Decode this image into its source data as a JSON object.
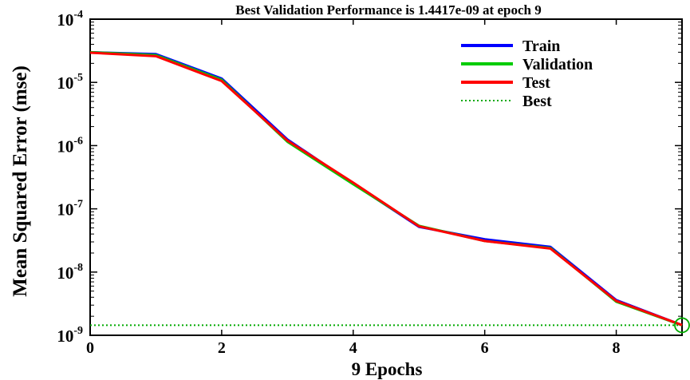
{
  "chart_data": {
    "type": "line",
    "title": "Best Validation Performance is 1.4417e-09 at epoch 9",
    "xlabel": "9 Epochs",
    "ylabel": "Mean Squared Error  (mse)",
    "xlim": [
      0,
      9
    ],
    "ylim": [
      1e-09,
      0.0001
    ],
    "yscale": "log",
    "xticks": [
      0,
      2,
      4,
      6,
      8
    ],
    "yticks": [
      {
        "value": 1e-09,
        "base": "10",
        "exp": "-9"
      },
      {
        "value": 1e-08,
        "base": "10",
        "exp": "-8"
      },
      {
        "value": 1e-07,
        "base": "10",
        "exp": "-7"
      },
      {
        "value": 1e-06,
        "base": "10",
        "exp": "-6"
      },
      {
        "value": 1e-05,
        "base": "10",
        "exp": "-5"
      },
      {
        "value": 0.0001,
        "base": "10",
        "exp": "-4"
      }
    ],
    "grid": false,
    "legend_position": "top-right",
    "x": [
      0,
      1,
      2,
      3,
      4,
      5,
      6,
      7,
      8,
      9
    ],
    "series": [
      {
        "name": "Train",
        "color": "#0000ff",
        "values": [
          3e-05,
          2.8e-05,
          1.15e-05,
          1.25e-06,
          2.5e-07,
          5.2e-08,
          3.3e-08,
          2.5e-08,
          3.6e-09,
          1.45e-09
        ]
      },
      {
        "name": "Validation",
        "color": "#00cc00",
        "values": [
          3e-05,
          2.7e-05,
          1.1e-05,
          1.15e-06,
          2.45e-07,
          5.4e-08,
          3.1e-08,
          2.4e-08,
          3.4e-09,
          1.44e-09
        ]
      },
      {
        "name": "Test",
        "color": "#ff0000",
        "values": [
          2.95e-05,
          2.6e-05,
          1.05e-05,
          1.2e-06,
          2.6e-07,
          5.3e-08,
          3.1e-08,
          2.35e-08,
          3.5e-09,
          1.45e-09
        ]
      }
    ],
    "best": {
      "name": "Best",
      "color": "#00aa00",
      "value": 1.4417e-09,
      "epoch": 9,
      "line_style": "dotted"
    }
  }
}
